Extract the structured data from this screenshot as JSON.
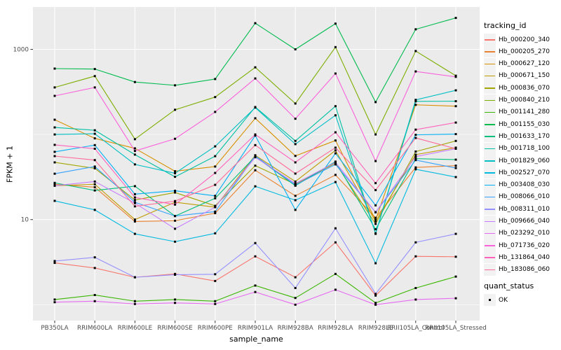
{
  "chart_data": {
    "type": "line",
    "title": "",
    "xlabel": "sample_name",
    "ylabel": "FPKM + 1",
    "y_scale": "log10",
    "grid": true,
    "legend_position": "right",
    "legend_title": "tracking_id",
    "panel_background": "#EBEBEB",
    "gridline_color": "#FFFFFF",
    "tick_label_color": "#4D4D4D",
    "point_color": "#000000",
    "point_shape": "square",
    "y_axis_ticks": [
      {
        "label": "10",
        "value": 10
      },
      {
        "label": "1000",
        "value": 1000
      }
    ],
    "y_minor_gridlines": [
      1,
      100
    ],
    "ylim_log_approx": [
      0.65,
      3155
    ],
    "categories": [
      "PB350LA",
      "RRIM600LA",
      "RRIM600LE",
      "RRIM600SE",
      "RRIM600PE",
      "RRIM901LA",
      "RRIM928BA",
      "RRIM928LA",
      "RRIM928LE",
      "RRII105LA_Control",
      "RRII105LA_Stressed"
    ],
    "series": [
      {
        "name": "Hb_000200_340",
        "color": "#F8766D",
        "values": [
          3.1,
          2.7,
          2.1,
          2.3,
          1.9,
          3.7,
          2.1,
          5.4,
          1.28,
          3.7,
          3.66
        ]
      },
      {
        "name": "Hb_000205_270",
        "color": "#EA8331",
        "values": [
          26,
          24,
          9.5,
          9.7,
          11.9,
          38,
          19,
          33.5,
          10.5,
          41,
          43
        ]
      },
      {
        "name": "Hb_000627_120",
        "color": "#D89000",
        "values": [
          149,
          90,
          68.7,
          37,
          42,
          155,
          56,
          85,
          9.9,
          223,
          215
        ]
      },
      {
        "name": "Hb_000671_150",
        "color": "#C09B00",
        "values": [
          25,
          26,
          10,
          16,
          14,
          57,
          28,
          65,
          9.5,
          58,
          70
        ]
      },
      {
        "name": "Hb_000836_070",
        "color": "#A3A500",
        "values": [
          47,
          40,
          17,
          20.8,
          14.5,
          43,
          26,
          46,
          8.9,
          63,
          84
        ]
      },
      {
        "name": "Hb_000840_210",
        "color": "#7CAE00",
        "values": [
          357,
          485,
          88,
          195,
          275,
          615,
          231,
          1062,
          100,
          955,
          490
        ]
      },
      {
        "name": "Hb_001141_280",
        "color": "#39B600",
        "values": [
          1.15,
          1.3,
          1.1,
          1.15,
          1.1,
          1.68,
          1.2,
          2.3,
          1.05,
          1.57,
          2.14
        ]
      },
      {
        "name": "Hb_001155_030",
        "color": "#00BB4E",
        "values": [
          594,
          587,
          413,
          378,
          448,
          2030,
          1000,
          2005,
          240,
          1720,
          2340
        ]
      },
      {
        "name": "Hb_001633_170",
        "color": "#00BF7D",
        "values": [
          27,
          22,
          24.7,
          11,
          17.8,
          55,
          25,
          48,
          7.7,
          52,
          50.6
        ]
      },
      {
        "name": "Hb_001718_100",
        "color": "#00C1A3",
        "values": [
          121,
          112,
          58,
          31.8,
          55.6,
          210,
          84,
          215,
          6.8,
          245,
          246
        ]
      },
      {
        "name": "Hb_001829_060",
        "color": "#00BFC4",
        "values": [
          100,
          102,
          44.5,
          35,
          72.5,
          207,
          77,
          168,
          6.9,
          255,
          330
        ]
      },
      {
        "name": "Hb_002527_070",
        "color": "#00BAE0",
        "values": [
          16.6,
          13,
          6.8,
          5.5,
          6.9,
          24.6,
          16.9,
          27.6,
          3.07,
          39,
          31.6
        ]
      },
      {
        "name": "Hb_003408_030",
        "color": "#00B0F6",
        "values": [
          62.5,
          75,
          19.9,
          21.8,
          19,
          97,
          13,
          60,
          14.7,
          99,
          101
        ]
      },
      {
        "name": "Hb_008066_010",
        "color": "#35A2FF",
        "values": [
          34.6,
          42,
          16,
          11,
          12.4,
          56,
          25.5,
          44.5,
          12.2,
          50,
          40.3
        ]
      },
      {
        "name": "Hb_008311_010",
        "color": "#9590FF",
        "values": [
          3.26,
          3.6,
          2.1,
          2.25,
          2.28,
          5.3,
          1.57,
          7.9,
          1.34,
          5.4,
          6.8
        ]
      },
      {
        "name": "Hb_009666_040",
        "color": "#C77CFF",
        "values": [
          25,
          28,
          15.6,
          7.8,
          14,
          54,
          26.5,
          47,
          12.2,
          55,
          68
        ]
      },
      {
        "name": "Hb_023292_010",
        "color": "#E76BF3",
        "values": [
          1.07,
          1.1,
          1.02,
          1.05,
          1.02,
          1.41,
          1.0,
          1.5,
          1.0,
          1.15,
          1.19
        ]
      },
      {
        "name": "Hb_071736_020",
        "color": "#FA62DB",
        "values": [
          284,
          357,
          64,
          89,
          184,
          455,
          153,
          520,
          48.7,
          550,
          475
        ]
      },
      {
        "name": "Hb_131864_040",
        "color": "#FF62BC",
        "values": [
          75.5,
          68,
          18.2,
          15,
          35.3,
          100,
          47,
          106,
          26.8,
          114,
          138
        ]
      },
      {
        "name": "Hb_183086_060",
        "color": "#FF6A98",
        "values": [
          55.7,
          50,
          14.3,
          16.5,
          25.6,
          75,
          34.7,
          70,
          22.2,
          91,
          68
        ]
      }
    ],
    "quant_legend": {
      "title": "quant_status",
      "items": [
        {
          "label": "OK"
        }
      ]
    }
  }
}
